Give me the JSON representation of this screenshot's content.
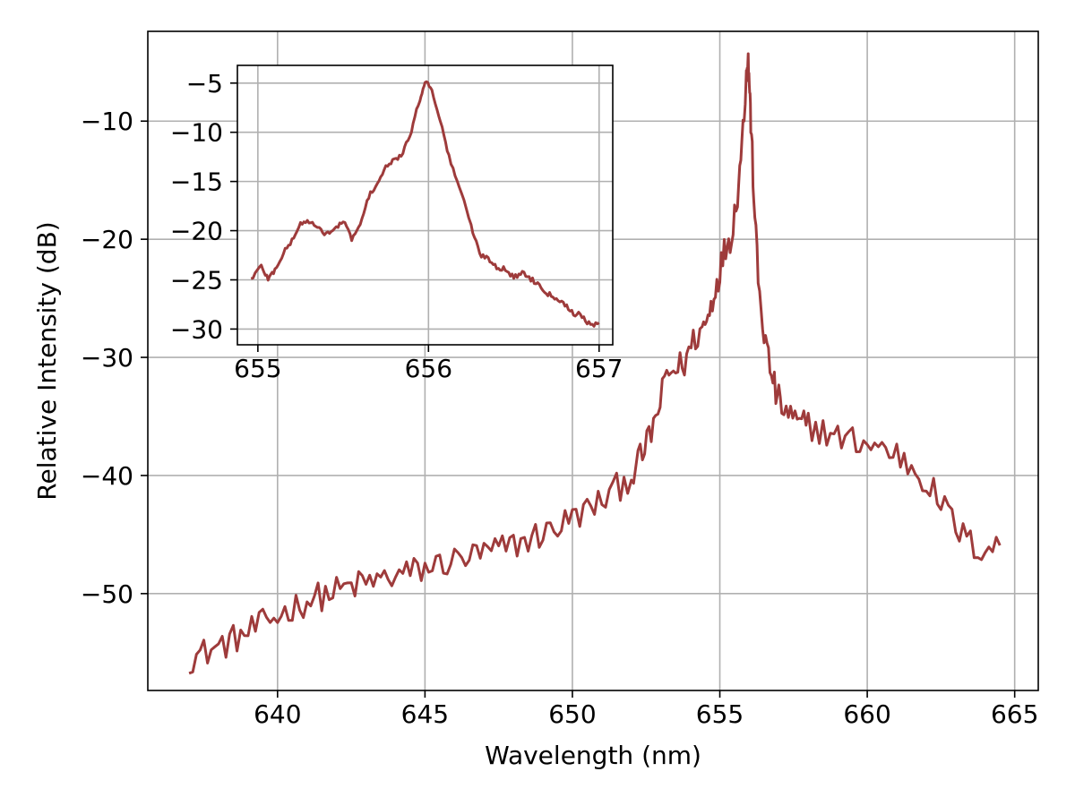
{
  "chart_data": [
    {
      "type": "line",
      "xlabel": "Wavelength (nm)",
      "ylabel": "Relative Intensity (dB)",
      "xlim": [
        635.6,
        665.8
      ],
      "ylim": [
        -58.2,
        -2.4
      ],
      "xticks": [
        640,
        645,
        650,
        655,
        660,
        665
      ],
      "yticks": [
        -50,
        -40,
        -30,
        -20,
        -10
      ],
      "xtick_labels": [
        "640",
        "645",
        "650",
        "655",
        "660",
        "665"
      ],
      "ytick_labels": [
        "−50",
        "−40",
        "−30",
        "−20",
        "−10"
      ],
      "grid": true,
      "color": "#9e3b3b",
      "series": [
        {
          "x": [
            637.0,
            637.5,
            638.0,
            638.5,
            639.0,
            639.5,
            640.0,
            640.5,
            641.0,
            641.5,
            642.0,
            642.5,
            643.0,
            643.5,
            644.0,
            644.5,
            645.0,
            645.5,
            646.0,
            646.5,
            647.0,
            647.5,
            648.0,
            648.5,
            649.0,
            649.5,
            650.0,
            650.5,
            651.0,
            651.5,
            652.0,
            652.3,
            652.6,
            652.9,
            653.2,
            653.5,
            653.8,
            654.1,
            654.4,
            654.6,
            654.8,
            655.0,
            655.2,
            655.4,
            655.6,
            655.75,
            655.9,
            655.95,
            656.0,
            656.05,
            656.15,
            656.3,
            656.5,
            656.7,
            656.9,
            657.1,
            657.4,
            657.7,
            658.0,
            658.5,
            659.0,
            659.5,
            660.0,
            660.5,
            661.0,
            661.5,
            662.0,
            662.5,
            663.0,
            663.5,
            664.0,
            664.5
          ],
          "values": [
            -55.5,
            -55.0,
            -54.5,
            -53.9,
            -53.3,
            -52.6,
            -51.9,
            -51.2,
            -50.6,
            -50.2,
            -49.8,
            -49.4,
            -49.1,
            -48.8,
            -48.5,
            -48.2,
            -47.9,
            -47.5,
            -47.2,
            -46.9,
            -46.6,
            -46.3,
            -45.9,
            -45.4,
            -44.9,
            -44.3,
            -43.6,
            -42.9,
            -42.2,
            -41.1,
            -40.0,
            -38.6,
            -36.9,
            -34.6,
            -31.5,
            -31.0,
            -30.5,
            -28.6,
            -27.6,
            -26.6,
            -24.6,
            -22.6,
            -20.6,
            -19.6,
            -16.0,
            -12.0,
            -6.0,
            -4.5,
            -6.5,
            -10.0,
            -16.0,
            -23.5,
            -28.0,
            -30.8,
            -33.0,
            -34.2,
            -35.0,
            -35.8,
            -35.6,
            -36.3,
            -36.8,
            -37.0,
            -37.3,
            -37.7,
            -38.2,
            -39.2,
            -40.5,
            -42.3,
            -44.3,
            -45.8,
            -46.3,
            -45.5
          ],
          "noise_db": 1.3
        }
      ]
    },
    {
      "type": "line",
      "xlim": [
        654.88,
        657.08
      ],
      "ylim": [
        -31.6,
        -3.2
      ],
      "xticks": [
        655,
        656,
        657
      ],
      "yticks": [
        -30,
        -25,
        -20,
        -15,
        -10,
        -5
      ],
      "xtick_labels": [
        "655",
        "656",
        "657"
      ],
      "ytick_labels": [
        "−30",
        "−25",
        "−20",
        "−15",
        "−10",
        "−5"
      ],
      "grid": true,
      "color": "#9e3b3b",
      "series": [
        {
          "x": [
            654.96,
            655.02,
            655.06,
            655.1,
            655.15,
            655.2,
            655.25,
            655.3,
            655.35,
            655.4,
            655.45,
            655.5,
            655.55,
            655.6,
            655.65,
            655.7,
            655.75,
            655.8,
            655.85,
            655.9,
            655.95,
            655.98,
            656.02,
            656.07,
            656.12,
            656.18,
            656.25,
            656.3,
            656.35,
            656.4,
            656.45,
            656.5,
            656.55,
            656.6,
            656.65,
            656.7,
            656.75,
            656.8,
            656.85,
            656.9,
            656.95,
            657.0
          ],
          "values": [
            -24.9,
            -23.6,
            -24.9,
            -24.0,
            -22.3,
            -21.0,
            -19.3,
            -19.0,
            -19.8,
            -20.3,
            -19.9,
            -19.0,
            -20.8,
            -19.5,
            -16.5,
            -15.2,
            -13.6,
            -12.8,
            -12.2,
            -9.8,
            -6.6,
            -4.8,
            -5.6,
            -8.9,
            -12.5,
            -15.5,
            -19.5,
            -22.4,
            -22.8,
            -23.7,
            -23.9,
            -24.8,
            -24.2,
            -24.9,
            -25.5,
            -26.4,
            -26.8,
            -27.5,
            -28.4,
            -28.6,
            -29.7,
            -29.5
          ],
          "noise_db": 0.25
        }
      ]
    }
  ]
}
